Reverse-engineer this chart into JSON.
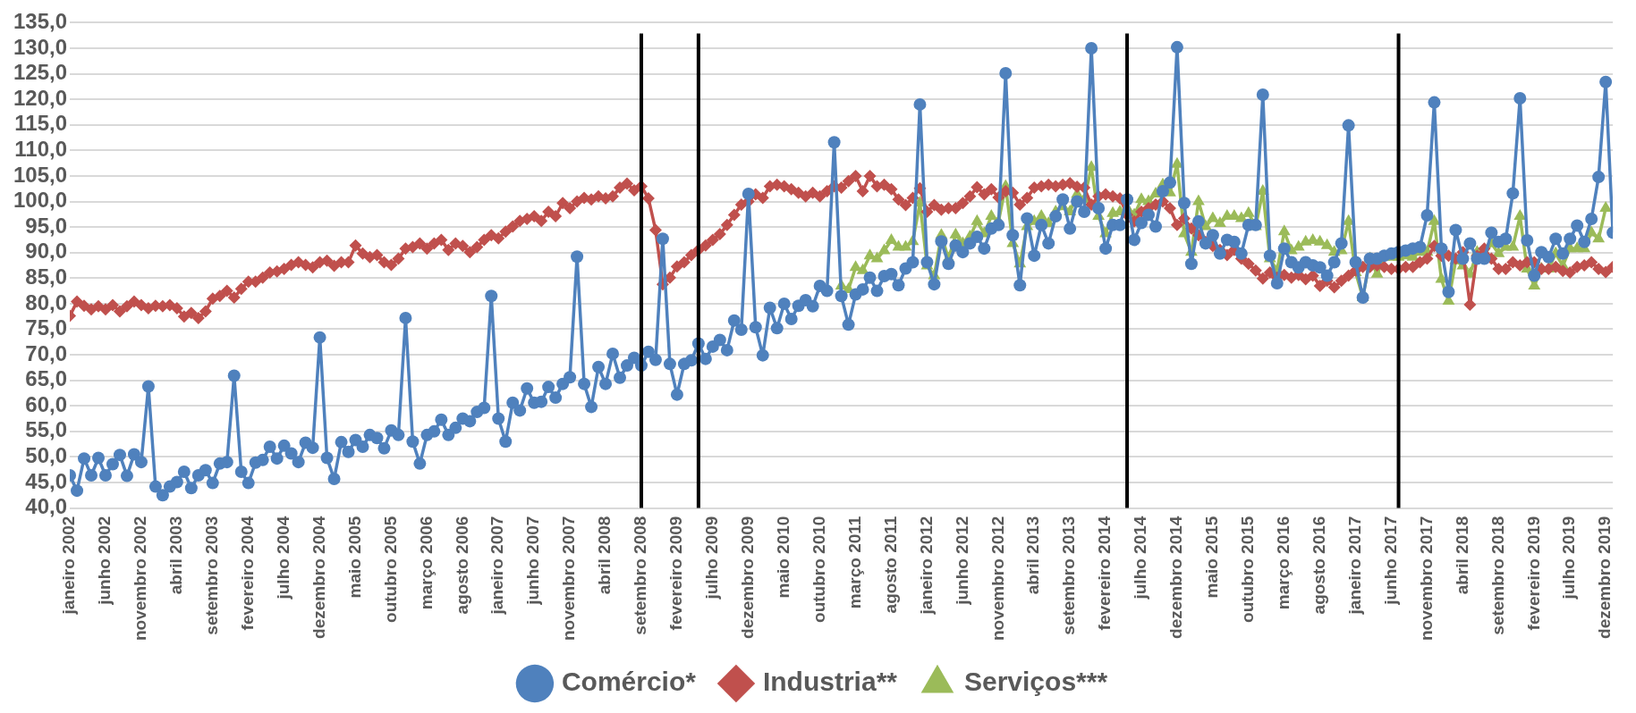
{
  "chart_data": {
    "type": "line",
    "x": [
      "2002-01",
      "2002-02",
      "2002-03",
      "2002-04",
      "2002-05",
      "2002-06",
      "2002-07",
      "2002-08",
      "2002-09",
      "2002-10",
      "2002-11",
      "2002-12",
      "2003-01",
      "2003-02",
      "2003-03",
      "2003-04",
      "2003-05",
      "2003-06",
      "2003-07",
      "2003-08",
      "2003-09",
      "2003-10",
      "2003-11",
      "2003-12",
      "2004-01",
      "2004-02",
      "2004-03",
      "2004-04",
      "2004-05",
      "2004-06",
      "2004-07",
      "2004-08",
      "2004-09",
      "2004-10",
      "2004-11",
      "2004-12",
      "2005-01",
      "2005-02",
      "2005-03",
      "2005-04",
      "2005-05",
      "2005-06",
      "2005-07",
      "2005-08",
      "2005-09",
      "2005-10",
      "2005-11",
      "2005-12",
      "2006-01",
      "2006-02",
      "2006-03",
      "2006-04",
      "2006-05",
      "2006-06",
      "2006-07",
      "2006-08",
      "2006-09",
      "2006-10",
      "2006-11",
      "2006-12",
      "2007-01",
      "2007-02",
      "2007-03",
      "2007-04",
      "2007-05",
      "2007-06",
      "2007-07",
      "2007-08",
      "2007-09",
      "2007-10",
      "2007-11",
      "2007-12",
      "2008-01",
      "2008-02",
      "2008-03",
      "2008-04",
      "2008-05",
      "2008-06",
      "2008-07",
      "2008-08",
      "2008-09",
      "2008-10",
      "2008-11",
      "2008-12",
      "2009-01",
      "2009-02",
      "2009-03",
      "2009-04",
      "2009-05",
      "2009-06",
      "2009-07",
      "2009-08",
      "2009-09",
      "2009-10",
      "2009-11",
      "2009-12",
      "2010-01",
      "2010-02",
      "2010-03",
      "2010-04",
      "2010-05",
      "2010-06",
      "2010-07",
      "2010-08",
      "2010-09",
      "2010-10",
      "2010-11",
      "2010-12",
      "2011-01",
      "2011-02",
      "2011-03",
      "2011-04",
      "2011-05",
      "2011-06",
      "2011-07",
      "2011-08",
      "2011-09",
      "2011-10",
      "2011-11",
      "2011-12",
      "2012-01",
      "2012-02",
      "2012-03",
      "2012-04",
      "2012-05",
      "2012-06",
      "2012-07",
      "2012-08",
      "2012-09",
      "2012-10",
      "2012-11",
      "2012-12",
      "2013-01",
      "2013-02",
      "2013-03",
      "2013-04",
      "2013-05",
      "2013-06",
      "2013-07",
      "2013-08",
      "2013-09",
      "2013-10",
      "2013-11",
      "2013-12",
      "2014-01",
      "2014-02",
      "2014-03",
      "2014-04",
      "2014-05",
      "2014-06",
      "2014-07",
      "2014-08",
      "2014-09",
      "2014-10",
      "2014-11",
      "2014-12",
      "2015-01",
      "2015-02",
      "2015-03",
      "2015-04",
      "2015-05",
      "2015-06",
      "2015-07",
      "2015-08",
      "2015-09",
      "2015-10",
      "2015-11",
      "2015-12",
      "2016-01",
      "2016-02",
      "2016-03",
      "2016-04",
      "2016-05",
      "2016-06",
      "2016-07",
      "2016-08",
      "2016-09",
      "2016-10",
      "2016-11",
      "2016-12",
      "2017-01",
      "2017-02",
      "2017-03",
      "2017-04",
      "2017-05",
      "2017-06",
      "2017-07",
      "2017-08",
      "2017-09",
      "2017-10",
      "2017-11",
      "2017-12",
      "2018-01",
      "2018-02",
      "2018-03",
      "2018-04",
      "2018-05",
      "2018-06",
      "2018-07",
      "2018-08",
      "2018-09",
      "2018-10",
      "2018-11",
      "2018-12",
      "2019-01",
      "2019-02",
      "2019-03",
      "2019-04",
      "2019-05",
      "2019-06",
      "2019-07",
      "2019-08",
      "2019-09",
      "2019-10",
      "2019-11",
      "2019-12",
      "2020-01"
    ],
    "xlim": [
      "2002-01",
      "2020-01"
    ],
    "xticks": [
      {
        "value": "2002-01",
        "label": "janeiro 2002"
      },
      {
        "value": "2002-06",
        "label": "junho 2002"
      },
      {
        "value": "2002-11",
        "label": "novembro 2002"
      },
      {
        "value": "2003-04",
        "label": "abril 2003"
      },
      {
        "value": "2003-09",
        "label": "setembro 2003"
      },
      {
        "value": "2004-02",
        "label": "fevereiro 2004"
      },
      {
        "value": "2004-07",
        "label": "julho 2004"
      },
      {
        "value": "2004-12",
        "label": "dezembro 2004"
      },
      {
        "value": "2005-05",
        "label": "maio 2005"
      },
      {
        "value": "2005-10",
        "label": "outubro 2005"
      },
      {
        "value": "2006-03",
        "label": "março 2006"
      },
      {
        "value": "2006-08",
        "label": "agosto 2006"
      },
      {
        "value": "2007-01",
        "label": "janeiro 2007"
      },
      {
        "value": "2007-06",
        "label": "junho 2007"
      },
      {
        "value": "2007-11",
        "label": "novembro 2007"
      },
      {
        "value": "2008-04",
        "label": "abril 2008"
      },
      {
        "value": "2008-09",
        "label": "setembro 2008"
      },
      {
        "value": "2009-02",
        "label": "fevereiro 2009"
      },
      {
        "value": "2009-07",
        "label": "julho 2009"
      },
      {
        "value": "2009-12",
        "label": "dezembro 2009"
      },
      {
        "value": "2010-05",
        "label": "maio 2010"
      },
      {
        "value": "2010-10",
        "label": "outubro 2010"
      },
      {
        "value": "2011-03",
        "label": "março 2011"
      },
      {
        "value": "2011-08",
        "label": "agosto 2011"
      },
      {
        "value": "2012-01",
        "label": "janeiro 2012"
      },
      {
        "value": "2012-06",
        "label": "junho 2012"
      },
      {
        "value": "2012-11",
        "label": "novembro 2012"
      },
      {
        "value": "2013-04",
        "label": "abril 2013"
      },
      {
        "value": "2013-09",
        "label": "setembro 2013"
      },
      {
        "value": "2014-02",
        "label": "fevereiro 2014"
      },
      {
        "value": "2014-07",
        "label": "julho 2014"
      },
      {
        "value": "2014-12",
        "label": "dezembro 2014"
      },
      {
        "value": "2015-05",
        "label": "maio 2015"
      },
      {
        "value": "2015-10",
        "label": "outubro 2015"
      },
      {
        "value": "2016-03",
        "label": "março 2016"
      },
      {
        "value": "2016-08",
        "label": "agosto 2016"
      },
      {
        "value": "2017-01",
        "label": "janeiro 2017"
      },
      {
        "value": "2017-06",
        "label": "junho 2017"
      },
      {
        "value": "2017-11",
        "label": "novembro 2017"
      },
      {
        "value": "2018-04",
        "label": "abril 2018"
      },
      {
        "value": "2018-09",
        "label": "setembro 2018"
      },
      {
        "value": "2019-02",
        "label": "fevereiro 2019"
      },
      {
        "value": "2019-07",
        "label": "julho 2019"
      },
      {
        "value": "2019-12",
        "label": "dezembro 2019"
      }
    ],
    "ylim": [
      40,
      135
    ],
    "yticks": [
      {
        "value": 40,
        "label": "40,0"
      },
      {
        "value": 45,
        "label": "45,0"
      },
      {
        "value": 50,
        "label": "50,0"
      },
      {
        "value": 55,
        "label": "55,0"
      },
      {
        "value": 60,
        "label": "60,0"
      },
      {
        "value": 65,
        "label": "65,0"
      },
      {
        "value": 70,
        "label": "70,0"
      },
      {
        "value": 75,
        "label": "75,0"
      },
      {
        "value": 80,
        "label": "80,0"
      },
      {
        "value": 85,
        "label": "85,0"
      },
      {
        "value": 90,
        "label": "90,0"
      },
      {
        "value": 95,
        "label": "95,0"
      },
      {
        "value": 100,
        "label": "100,0"
      },
      {
        "value": 105,
        "label": "105,0"
      },
      {
        "value": 110,
        "label": "110,0"
      },
      {
        "value": 115,
        "label": "115,0"
      },
      {
        "value": 120,
        "label": "120,0"
      },
      {
        "value": 125,
        "label": "125,0"
      },
      {
        "value": 130,
        "label": "130,0"
      },
      {
        "value": 135,
        "label": "135,0"
      }
    ],
    "grid": "y",
    "legend": "bottom",
    "line_style": "solid",
    "ref_lines": [
      {
        "axis": "x",
        "value": "2008-09",
        "color": "#000000"
      },
      {
        "axis": "x",
        "value": "2009-05",
        "color": "#000000"
      },
      {
        "axis": "x",
        "value": "2014-05",
        "color": "#000000"
      },
      {
        "axis": "x",
        "value": "2017-07",
        "color": "#000000"
      }
    ],
    "series": [
      {
        "name": "Comércio*",
        "color": "#4f81bd",
        "marker": "circle",
        "values": [
          46.4,
          43.4,
          49.7,
          46.4,
          49.8,
          46.4,
          48.6,
          50.4,
          46.3,
          50.5,
          49.0,
          63.8,
          44.2,
          42.5,
          44.2,
          45.1,
          47.1,
          43.9,
          46.4,
          47.4,
          44.9,
          48.7,
          49.0,
          65.9,
          47.1,
          44.9,
          48.9,
          49.4,
          52.0,
          49.7,
          52.2,
          50.7,
          49.0,
          52.8,
          51.8,
          73.4,
          49.8,
          45.7,
          52.9,
          51.0,
          53.3,
          52.0,
          54.3,
          53.7,
          51.7,
          55.2,
          54.3,
          77.2,
          53.0,
          48.7,
          54.3,
          55.0,
          57.3,
          54.3,
          55.7,
          57.5,
          57.0,
          58.8,
          59.6,
          81.5,
          57.5,
          53.0,
          60.6,
          59.1,
          63.4,
          60.6,
          60.8,
          63.7,
          61.6,
          64.3,
          65.6,
          89.2,
          64.3,
          59.8,
          67.6,
          64.3,
          70.2,
          65.5,
          67.9,
          69.4,
          67.9,
          70.6,
          69.0,
          92.7,
          68.2,
          62.2,
          68.2,
          68.9,
          72.2,
          69.2,
          71.6,
          72.9,
          70.9,
          76.7,
          74.9,
          101.5,
          75.4,
          69.9,
          79.2,
          75.2,
          80.0,
          77.0,
          79.6,
          80.7,
          79.5,
          83.5,
          82.5,
          111.6,
          81.5,
          75.9,
          81.8,
          82.8,
          85.1,
          82.5,
          85.4,
          85.8,
          83.6,
          86.9,
          88.1,
          119.0,
          88.1,
          83.8,
          92.2,
          87.8,
          91.4,
          90.1,
          91.8,
          93.1,
          90.8,
          94.7,
          95.4,
          125.1,
          93.4,
          83.6,
          96.7,
          89.4,
          95.4,
          91.8,
          97.1,
          100.4,
          94.7,
          100.0,
          98.0,
          130.0,
          98.7,
          90.8,
          95.4,
          95.4,
          100.4,
          92.5,
          95.8,
          97.4,
          95.1,
          102.0,
          103.7,
          130.2,
          99.7,
          87.8,
          96.1,
          91.8,
          93.4,
          89.8,
          92.5,
          92.1,
          89.8,
          95.4,
          95.4,
          120.9,
          89.4,
          84.0,
          90.8,
          88.1,
          87.1,
          88.1,
          87.5,
          87.1,
          85.5,
          88.1,
          91.8,
          114.9,
          88.1,
          81.2,
          88.8,
          88.8,
          89.4,
          89.8,
          90.1,
          90.4,
          90.8,
          91.1,
          97.3,
          119.4,
          90.8,
          82.3,
          94.4,
          88.8,
          91.8,
          88.8,
          88.8,
          93.9,
          92.1,
          92.7,
          101.6,
          120.2,
          92.4,
          85.5,
          90.1,
          89.1,
          92.7,
          89.8,
          92.7,
          95.3,
          92.1,
          96.6,
          104.8,
          123.4,
          93.9
        ]
      },
      {
        "name": "Industria**",
        "color": "#c0504d",
        "marker": "diamond",
        "values": [
          77.6,
          80.4,
          79.6,
          78.9,
          79.5,
          78.9,
          79.7,
          78.5,
          79.5,
          80.4,
          79.7,
          79.1,
          79.6,
          79.5,
          79.7,
          79.1,
          77.5,
          78.2,
          77.2,
          78.5,
          81.0,
          81.5,
          82.5,
          81.2,
          82.9,
          84.3,
          84.3,
          85.1,
          86.1,
          86.3,
          86.8,
          87.6,
          88.1,
          87.6,
          87.1,
          88.1,
          88.4,
          87.4,
          88.1,
          88.1,
          91.4,
          89.8,
          89.1,
          89.5,
          88.1,
          87.6,
          88.8,
          90.8,
          91.1,
          91.8,
          90.8,
          91.8,
          92.5,
          90.5,
          91.8,
          91.3,
          90.1,
          91.1,
          92.5,
          93.4,
          92.8,
          94.1,
          95.1,
          96.2,
          96.6,
          97.1,
          96.2,
          98.0,
          97.1,
          99.7,
          98.7,
          100.0,
          100.7,
          100.4,
          101.0,
          100.6,
          101.0,
          102.7,
          103.5,
          102.2,
          103.0,
          100.6,
          94.4,
          83.8,
          85.1,
          87.3,
          88.1,
          89.5,
          90.5,
          91.4,
          92.5,
          93.6,
          95.4,
          97.4,
          99.4,
          100.0,
          101.4,
          100.7,
          103.0,
          103.3,
          103.0,
          102.4,
          101.7,
          101.0,
          101.7,
          101.0,
          102.0,
          103.0,
          102.7,
          104.0,
          105.0,
          102.0,
          105.0,
          103.0,
          103.3,
          102.4,
          100.4,
          99.3,
          100.7,
          102.6,
          98.0,
          99.3,
          98.4,
          98.7,
          98.7,
          99.7,
          101.0,
          102.8,
          101.4,
          102.4,
          100.8,
          102.0,
          101.7,
          99.4,
          100.7,
          102.7,
          103.0,
          103.3,
          103.0,
          103.3,
          103.6,
          102.9,
          102.7,
          99.4,
          101.0,
          101.4,
          101.0,
          100.6,
          97.4,
          96.1,
          98.0,
          98.7,
          99.4,
          100.0,
          98.7,
          95.4,
          96.7,
          94.7,
          93.4,
          92.1,
          91.3,
          90.5,
          89.5,
          90.5,
          88.8,
          87.8,
          86.5,
          84.9,
          86.1,
          85.1,
          85.6,
          85.1,
          85.6,
          84.8,
          85.5,
          83.5,
          84.5,
          83.2,
          84.5,
          85.5,
          86.5,
          87.2,
          87.2,
          87.5,
          87.2,
          86.8,
          86.8,
          87.2,
          87.2,
          88.1,
          88.8,
          91.3,
          89.4,
          89.4,
          88.8,
          90.1,
          79.8,
          89.4,
          90.8,
          88.8,
          86.8,
          86.8,
          88.1,
          87.5,
          88.1,
          88.1,
          86.8,
          86.8,
          87.2,
          86.4,
          86.1,
          87.2,
          87.5,
          88.1,
          86.8,
          86.2,
          87.2
        ]
      },
      {
        "name": "Serviços***",
        "color": "#9bbb59",
        "marker": "triangle",
        "values": [
          null,
          null,
          null,
          null,
          null,
          null,
          null,
          null,
          null,
          null,
          null,
          null,
          null,
          null,
          null,
          null,
          null,
          null,
          null,
          null,
          null,
          null,
          null,
          null,
          null,
          null,
          null,
          null,
          null,
          null,
          null,
          null,
          null,
          null,
          null,
          null,
          null,
          null,
          null,
          null,
          null,
          null,
          null,
          null,
          null,
          null,
          null,
          null,
          null,
          null,
          null,
          null,
          null,
          null,
          null,
          null,
          null,
          null,
          null,
          null,
          null,
          null,
          null,
          null,
          null,
          null,
          null,
          null,
          null,
          null,
          null,
          null,
          null,
          null,
          null,
          null,
          null,
          null,
          null,
          null,
          null,
          null,
          null,
          null,
          null,
          null,
          null,
          null,
          null,
          null,
          null,
          null,
          null,
          null,
          null,
          null,
          null,
          null,
          null,
          null,
          null,
          null,
          null,
          null,
          null,
          null,
          null,
          null,
          83.5,
          82.8,
          87.1,
          86.5,
          89.4,
          88.8,
          90.4,
          92.4,
          91.1,
          91.1,
          92.2,
          99.7,
          87.4,
          85.5,
          93.4,
          88.8,
          93.5,
          91.8,
          93.1,
          96.1,
          93.7,
          97.1,
          96.1,
          103.0,
          91.8,
          87.8,
          95.1,
          96.1,
          97.1,
          95.7,
          98.0,
          99.0,
          98.0,
          101.4,
          100.4,
          106.7,
          97.1,
          93.7,
          97.7,
          98.0,
          98.7,
          97.4,
          100.4,
          100.0,
          101.5,
          103.3,
          101.7,
          107.3,
          93.7,
          90.1,
          100.0,
          95.1,
          96.7,
          95.7,
          97.1,
          97.1,
          96.7,
          97.7,
          95.1,
          102.0,
          88.8,
          86.5,
          94.1,
          90.4,
          91.1,
          92.1,
          92.4,
          92.1,
          91.4,
          90.1,
          90.4,
          96.1,
          86.1,
          81.2,
          88.8,
          85.8,
          89.1,
          89.1,
          89.1,
          89.4,
          89.1,
          90.1,
          90.1,
          96.1,
          84.8,
          80.5,
          88.4,
          87.4,
          85.8,
          90.1,
          89.4,
          91.8,
          89.8,
          91.1,
          91.1,
          97.1,
          86.8,
          83.5,
          86.8,
          86.8,
          89.8,
          87.4,
          90.8,
          90.8,
          90.8,
          93.9,
          92.7,
          98.7,
          null
        ]
      }
    ]
  }
}
